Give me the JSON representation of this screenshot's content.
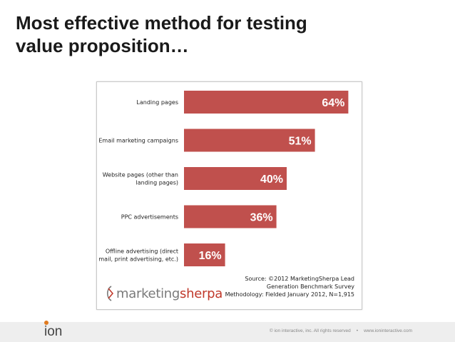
{
  "slide": {
    "title_line1": "Most effective method for testing",
    "title_line2": "value proposition…"
  },
  "chart_data": {
    "type": "bar",
    "orientation": "horizontal",
    "categories": [
      [
        "Landing pages"
      ],
      [
        "Email marketing campaigns"
      ],
      [
        "Website pages (other than",
        "landing pages)"
      ],
      [
        "PPC advertisements"
      ],
      [
        "Offline advertising (direct",
        "mail, print advertising, etc.)"
      ]
    ],
    "values": [
      64,
      51,
      40,
      36,
      16
    ],
    "value_labels": [
      "64%",
      "51%",
      "40%",
      "36%",
      "16%"
    ],
    "bar_color": "#c0504d",
    "xlim": [
      0,
      100
    ],
    "grid": false
  },
  "source": {
    "line1": "Source: ©2012 MarketingSherpa Lead",
    "line2": "Generation Benchmark Survey",
    "line3": "Methodology: Fielded January 2012, N=1,915"
  },
  "brand": {
    "logo_part1": "marketing",
    "logo_part2": "sherpa",
    "accent_color": "#c0392b"
  },
  "footer": {
    "logo": "ion",
    "copyright": "© ion interactive, inc. All rights reserved",
    "separator": "•",
    "url": "www.ioninteractive.com",
    "accent_color": "#e07a1f"
  }
}
